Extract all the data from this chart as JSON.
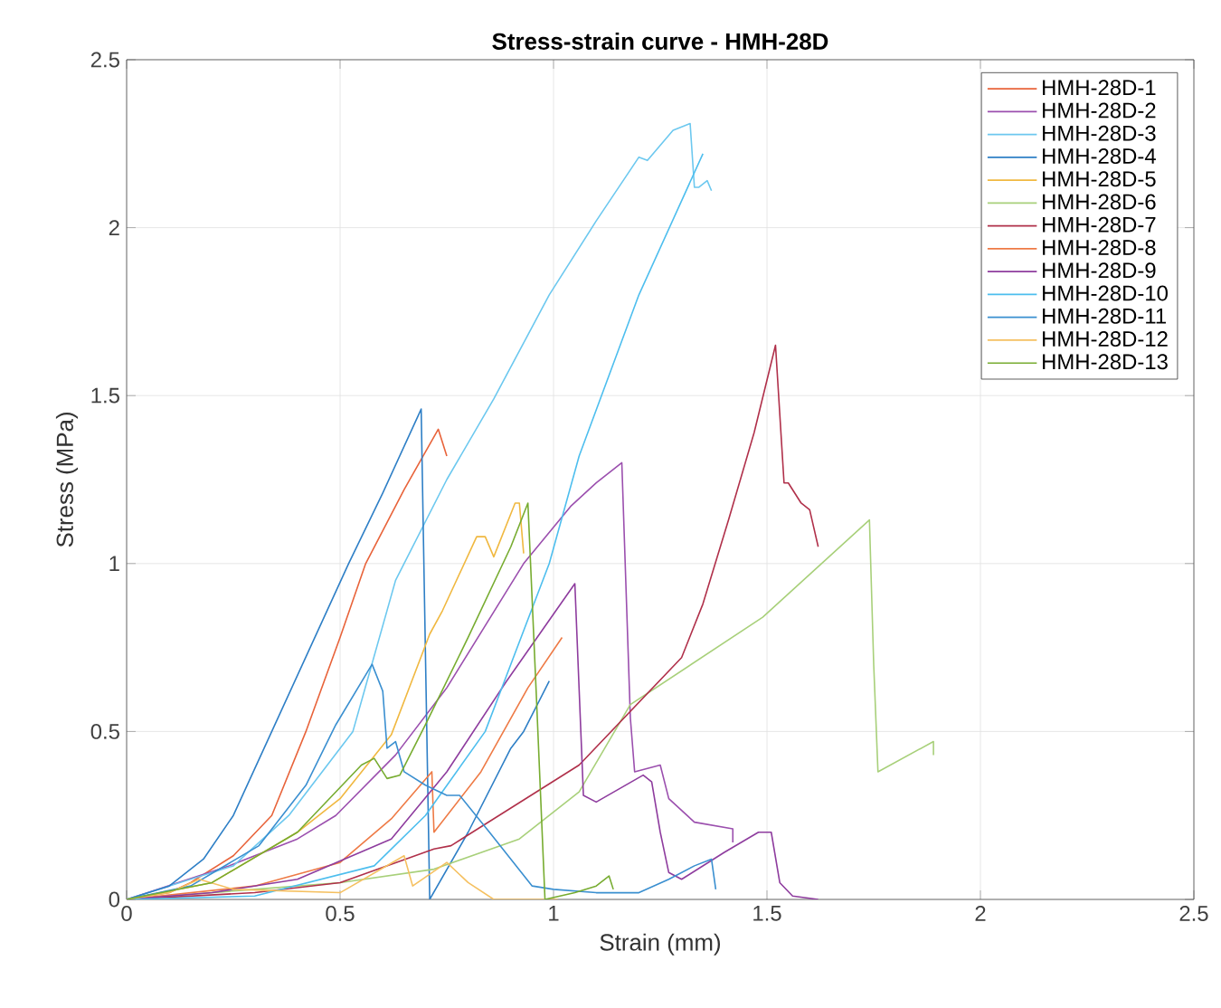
{
  "chart_data": {
    "type": "line",
    "title": "Stress-strain curve - HMH-28D",
    "xlabel": "Strain (mm)",
    "ylabel": "Stress (MPa)",
    "xlim": [
      0,
      2.5
    ],
    "ylim": [
      0,
      2.5
    ],
    "xticks": [
      0,
      0.5,
      1,
      1.5,
      2,
      2.5
    ],
    "yticks": [
      0,
      0.5,
      1,
      1.5,
      2,
      2.5
    ],
    "grid": true,
    "legend": "top right",
    "marker": "none",
    "line_style": "solid",
    "series": [
      {
        "name": "HMH-28D-1",
        "color": "#e8633a",
        "x": [
          0,
          0.1,
          0.15,
          0.25,
          0.34,
          0.42,
          0.5,
          0.56,
          0.65,
          0.73,
          0.75
        ],
        "values": [
          0,
          0.02,
          0.05,
          0.13,
          0.25,
          0.5,
          0.78,
          1.0,
          1.22,
          1.4,
          1.32
        ]
      },
      {
        "name": "HMH-28D-2",
        "color": "#9b4fae",
        "x": [
          0,
          0.24,
          0.3,
          0.4,
          0.49,
          0.63,
          0.75,
          0.93,
          1.04,
          1.1,
          1.16,
          1.18,
          1.19,
          1.25,
          1.27,
          1.33,
          1.42,
          1.42
        ],
        "values": [
          0,
          0.1,
          0.13,
          0.18,
          0.25,
          0.43,
          0.63,
          1.0,
          1.17,
          1.24,
          1.3,
          0.54,
          0.38,
          0.4,
          0.3,
          0.23,
          0.21,
          0.17
        ]
      },
      {
        "name": "HMH-28D-3",
        "color": "#6cc8ef",
        "x": [
          0,
          0.25,
          0.38,
          0.53,
          0.63,
          0.75,
          0.86,
          0.99,
          1.1,
          1.2,
          1.22,
          1.28,
          1.32,
          1.33,
          1.34,
          1.36,
          1.37
        ],
        "values": [
          0,
          0.1,
          0.25,
          0.5,
          0.95,
          1.25,
          1.49,
          1.8,
          2.02,
          2.21,
          2.2,
          2.29,
          2.31,
          2.12,
          2.12,
          2.14,
          2.11
        ]
      },
      {
        "name": "HMH-28D-4",
        "color": "#2e7fc6",
        "x": [
          0,
          0.1,
          0.18,
          0.25,
          0.34,
          0.43,
          0.52,
          0.6,
          0.69,
          0.71,
          0.8,
          0.9,
          0.93,
          0.99
        ],
        "values": [
          0,
          0.04,
          0.12,
          0.25,
          0.5,
          0.75,
          1.0,
          1.21,
          1.46,
          0,
          0.2,
          0.45,
          0.5,
          0.65
        ]
      },
      {
        "name": "HMH-28D-5",
        "color": "#f0b840",
        "x": [
          0,
          0.2,
          0.4,
          0.5,
          0.62,
          0.71,
          0.74,
          0.82,
          0.84,
          0.86,
          0.91,
          0.92,
          0.93
        ],
        "values": [
          0,
          0.05,
          0.2,
          0.3,
          0.49,
          0.79,
          0.86,
          1.08,
          1.08,
          1.02,
          1.18,
          1.18,
          1.03
        ]
      },
      {
        "name": "HMH-28D-6",
        "color": "#a8d07a",
        "x": [
          0,
          0.3,
          0.5,
          0.72,
          0.92,
          1.06,
          1.18,
          1.49,
          1.74,
          1.75,
          1.76,
          1.89,
          1.89
        ],
        "values": [
          0,
          0.03,
          0.05,
          0.09,
          0.18,
          0.32,
          0.58,
          0.84,
          1.13,
          0.7,
          0.38,
          0.47,
          0.43
        ]
      },
      {
        "name": "HMH-28D-7",
        "color": "#b0304a",
        "x": [
          0,
          0.3,
          0.5,
          0.72,
          0.76,
          1.06,
          1.18,
          1.3,
          1.35,
          1.41,
          1.47,
          1.52,
          1.54,
          1.55,
          1.58,
          1.6,
          1.62
        ],
        "values": [
          0,
          0.02,
          0.05,
          0.15,
          0.16,
          0.4,
          0.56,
          0.72,
          0.88,
          1.13,
          1.39,
          1.65,
          1.24,
          1.24,
          1.18,
          1.16,
          1.05
        ]
      },
      {
        "name": "HMH-28D-8",
        "color": "#ee7a45",
        "x": [
          0,
          0.3,
          0.5,
          0.62,
          0.715,
          0.72,
          0.83,
          0.94,
          1.02
        ],
        "values": [
          0,
          0.04,
          0.11,
          0.24,
          0.38,
          0.2,
          0.38,
          0.63,
          0.78
        ]
      },
      {
        "name": "HMH-28D-9",
        "color": "#8e3c9e",
        "x": [
          0,
          0.2,
          0.4,
          0.62,
          0.75,
          0.89,
          1.05,
          1.07,
          1.1,
          1.21,
          1.23,
          1.25,
          1.27,
          1.3,
          1.4,
          1.48,
          1.51,
          1.53,
          1.56,
          1.62
        ],
        "values": [
          0,
          0.02,
          0.06,
          0.18,
          0.38,
          0.65,
          0.94,
          0.31,
          0.29,
          0.37,
          0.35,
          0.2,
          0.08,
          0.06,
          0.14,
          0.2,
          0.2,
          0.05,
          0.01,
          0
        ]
      },
      {
        "name": "HMH-28D-10",
        "color": "#4dbeee",
        "x": [
          0,
          0.3,
          0.58,
          0.7,
          0.84,
          0.99,
          1.06,
          1.2,
          1.35
        ],
        "values": [
          0,
          0.01,
          0.1,
          0.25,
          0.5,
          1.0,
          1.32,
          1.8,
          2.22
        ]
      },
      {
        "name": "HMH-28D-11",
        "color": "#3a8fd0",
        "x": [
          0,
          0.15,
          0.31,
          0.42,
          0.49,
          0.575,
          0.6,
          0.61,
          0.63,
          0.65,
          0.7,
          0.75,
          0.78,
          0.85,
          0.9,
          0.95,
          1.0,
          1.1,
          1.2,
          1.27,
          1.33,
          1.37,
          1.38
        ],
        "values": [
          0,
          0.04,
          0.16,
          0.34,
          0.52,
          0.7,
          0.62,
          0.45,
          0.47,
          0.38,
          0.34,
          0.31,
          0.31,
          0.2,
          0.12,
          0.04,
          0.03,
          0.02,
          0.02,
          0.06,
          0.1,
          0.12,
          0.03
        ]
      },
      {
        "name": "HMH-28D-12",
        "color": "#f5c060",
        "x": [
          0,
          0.1,
          0.17,
          0.25,
          0.5,
          0.65,
          0.67,
          0.75,
          0.8,
          0.86,
          1.01
        ],
        "values": [
          0,
          0.02,
          0.06,
          0.03,
          0.02,
          0.13,
          0.04,
          0.11,
          0.05,
          0,
          0
        ]
      },
      {
        "name": "HMH-28D-13",
        "color": "#77ac30",
        "x": [
          0,
          0.2,
          0.4,
          0.55,
          0.58,
          0.61,
          0.64,
          0.7,
          0.8,
          0.9,
          0.94,
          0.96,
          0.98,
          1.05,
          1.1,
          1.13,
          1.14
        ],
        "values": [
          0,
          0.05,
          0.2,
          0.4,
          0.42,
          0.36,
          0.37,
          0.52,
          0.78,
          1.05,
          1.18,
          0.6,
          0,
          0.02,
          0.04,
          0.07,
          0.03
        ]
      }
    ]
  }
}
